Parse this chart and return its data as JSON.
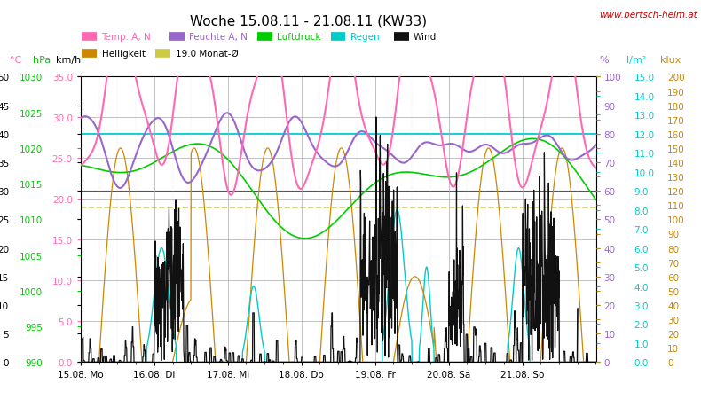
{
  "title": "Woche 15.08.11 - 21.08.11 (KW33)",
  "watermark": "www.bertsch-heim.at",
  "watermark_color": "#cc0000",
  "temp_color": "#ff69b4",
  "temp_min": 0.0,
  "temp_max": 35.0,
  "hpa_color": "#00cc00",
  "hpa_min": 990,
  "hpa_max": 1030,
  "kmh_color": "#000000",
  "kmh_min": 0,
  "kmh_max": 50,
  "pct_color": "#9966cc",
  "pct_min": 0,
  "pct_max": 100,
  "lm2_color": "#00cccc",
  "lm2_min": 0.0,
  "lm2_max": 15.0,
  "klux_color": "#cc8800",
  "klux_min": 0,
  "klux_max": 200,
  "xticklabels": [
    "15.08. Mo",
    "16.08. Di",
    "17.08. Mi",
    "18.08. Do",
    "19.08. Fr",
    "20.08. Sa",
    "21.08. So"
  ],
  "background_color": "#ffffff",
  "plot_bg_color": "#ffffff",
  "grid_color": "#aaaaaa",
  "n_points": 1680,
  "cyan_ref_pct": 80,
  "dark_ref_pct": 60,
  "monat_avg_temp": 19.0
}
